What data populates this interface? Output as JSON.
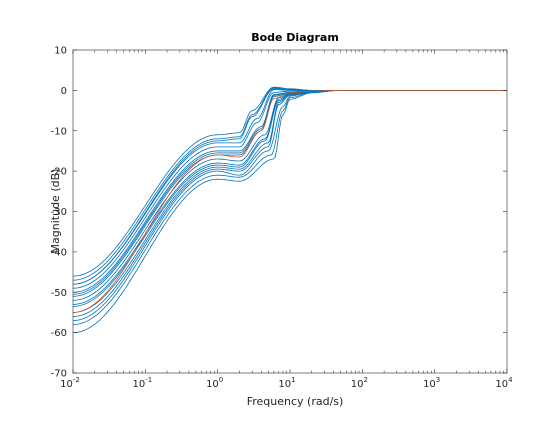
{
  "chart_data": {
    "type": "line",
    "title": "Bode Diagram",
    "xlabel": "Frequency  (rad/s)",
    "ylabel": "Magnitude (dB)",
    "x_scale": "log",
    "xlim": [
      0.01,
      10000
    ],
    "ylim": [
      -70,
      10
    ],
    "x_ticks": [
      {
        "base": "10",
        "exp": "-2",
        "value": 0.01
      },
      {
        "base": "10",
        "exp": "-1",
        "value": 0.1
      },
      {
        "base": "10",
        "exp": "0",
        "value": 1
      },
      {
        "base": "10",
        "exp": "1",
        "value": 10
      },
      {
        "base": "10",
        "exp": "2",
        "value": 100
      },
      {
        "base": "10",
        "exp": "3",
        "value": 1000
      },
      {
        "base": "10",
        "exp": "4",
        "value": 10000
      }
    ],
    "y_ticks": [
      {
        "label": "10",
        "value": 10
      },
      {
        "label": "0",
        "value": 0
      },
      {
        "label": "-10",
        "value": -10
      },
      {
        "label": "-20",
        "value": -20
      },
      {
        "label": "-30",
        "value": -30
      },
      {
        "label": "-40",
        "value": -40
      },
      {
        "label": "-50",
        "value": -50
      },
      {
        "label": "-60",
        "value": -60
      },
      {
        "label": "-70",
        "value": -70
      }
    ],
    "grid": false,
    "legend": "none",
    "colors": {
      "samples": "#0072bd",
      "nominal": "#d95319",
      "axes": "#262626"
    },
    "series": [
      {
        "role": "nominal",
        "x": [
          0.01,
          1,
          2,
          4,
          6,
          10,
          20,
          50,
          10000
        ],
        "y": [
          -55,
          -16,
          -16.5,
          -10,
          -2,
          -0.6,
          -0.2,
          0,
          0
        ]
      },
      {
        "role": "sample",
        "x": [
          0.01,
          1,
          2,
          3,
          6,
          10,
          20,
          50,
          10000
        ],
        "y": [
          -46,
          -11,
          -10.5,
          -5,
          0.8,
          0.4,
          0,
          0,
          0
        ]
      },
      {
        "role": "sample",
        "x": [
          0.01,
          1,
          2,
          3,
          6,
          10,
          20,
          50,
          10000
        ],
        "y": [
          -47,
          -12,
          -11.5,
          -6,
          0.6,
          0.3,
          0,
          0,
          0
        ]
      },
      {
        "role": "sample",
        "x": [
          0.01,
          1,
          2,
          3.5,
          6,
          10,
          20,
          50,
          10000
        ],
        "y": [
          -48,
          -13,
          -13,
          -7,
          0.2,
          0,
          0,
          0,
          0
        ]
      },
      {
        "role": "sample",
        "x": [
          0.01,
          1,
          2,
          3.5,
          6,
          10,
          20,
          50,
          10000
        ],
        "y": [
          -49,
          -14,
          -14,
          -8,
          -0.5,
          -0.2,
          -0.1,
          0,
          0
        ]
      },
      {
        "role": "sample",
        "x": [
          0.01,
          1,
          2,
          4,
          6,
          10,
          20,
          50,
          10000
        ],
        "y": [
          -50,
          -15,
          -15,
          -9,
          -1,
          -0.5,
          -0.2,
          0,
          0
        ]
      },
      {
        "role": "sample",
        "x": [
          0.01,
          1,
          2,
          4,
          6,
          10,
          20,
          50,
          10000
        ],
        "y": [
          -51,
          -16,
          -16,
          -10,
          -1.5,
          -0.6,
          -0.2,
          0,
          0
        ]
      },
      {
        "role": "sample",
        "x": [
          0.01,
          1,
          2,
          4.5,
          7,
          10,
          20,
          50,
          10000
        ],
        "y": [
          -52,
          -17,
          -17.5,
          -11,
          -1.8,
          -0.7,
          -0.2,
          0,
          0
        ]
      },
      {
        "role": "sample",
        "x": [
          0.01,
          1,
          2,
          4.5,
          7,
          10,
          20,
          50,
          10000
        ],
        "y": [
          -53,
          -18,
          -18.5,
          -12,
          -2.2,
          -0.8,
          -0.3,
          0,
          0
        ]
      },
      {
        "role": "sample",
        "x": [
          0.01,
          1,
          2,
          5,
          7,
          10,
          20,
          50,
          10000
        ],
        "y": [
          -55,
          -19,
          -19.5,
          -13,
          -3,
          -1,
          -0.3,
          0,
          0
        ]
      },
      {
        "role": "sample",
        "x": [
          0.01,
          1,
          2,
          5,
          7,
          10,
          20,
          50,
          10000
        ],
        "y": [
          -56,
          -19.5,
          -20,
          -14,
          -3.5,
          -1.2,
          -0.3,
          0,
          0
        ]
      },
      {
        "role": "sample",
        "x": [
          0.01,
          1,
          2,
          5,
          8,
          10,
          20,
          50,
          10000
        ],
        "y": [
          -57,
          -20,
          -21,
          -15,
          -4,
          -1.4,
          -0.4,
          0,
          0
        ]
      },
      {
        "role": "sample",
        "x": [
          0.01,
          1,
          2,
          5.5,
          8,
          10,
          20,
          50,
          10000
        ],
        "y": [
          -58,
          -21,
          -21.5,
          -16,
          -5,
          -1.8,
          -0.5,
          0,
          0
        ]
      },
      {
        "role": "sample",
        "x": [
          0.01,
          1,
          2,
          6,
          8,
          10,
          20,
          50,
          10000
        ],
        "y": [
          -60,
          -22,
          -22.5,
          -17,
          -6,
          -2.2,
          -0.6,
          0,
          0
        ]
      },
      {
        "role": "sample",
        "x": [
          0.01,
          1,
          2,
          3,
          6,
          10,
          20,
          50,
          10000
        ],
        "y": [
          -48,
          -12.5,
          -12,
          -6.5,
          0.4,
          0.2,
          0,
          0,
          0
        ]
      },
      {
        "role": "sample",
        "x": [
          0.01,
          1,
          2,
          4,
          6,
          10,
          20,
          50,
          10000
        ],
        "y": [
          -50.5,
          -15.5,
          -15.5,
          -9.5,
          -1.2,
          -0.5,
          -0.2,
          0,
          0
        ]
      },
      {
        "role": "sample",
        "x": [
          0.01,
          1,
          2,
          4.5,
          7,
          10,
          20,
          50,
          10000
        ],
        "y": [
          -53.5,
          -18.5,
          -19,
          -12.5,
          -2.6,
          -0.9,
          -0.3,
          0,
          0
        ]
      }
    ]
  }
}
